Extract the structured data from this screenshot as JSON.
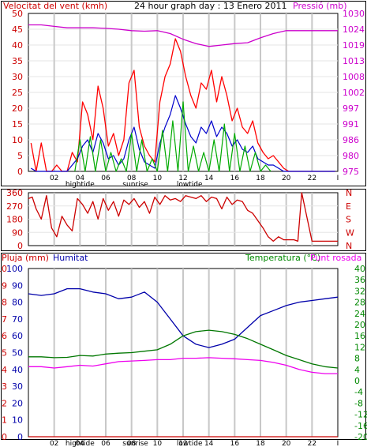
{
  "colors": {
    "wind": "#ff0000",
    "gust": "#dd0000",
    "wind_avg": "#0000cc",
    "wind_green": "#00aa00",
    "pressure": "#cc00cc",
    "direction": "#cc0000",
    "humidity": "#0000aa",
    "temperature": "#007700",
    "dewpoint": "#ee00ee",
    "rain": "#cc0000",
    "grid": "#c8c8c8",
    "frame": "#000000",
    "temp_axis": "#008800"
  },
  "panel1": {
    "left_label": "Velocitat del vent (kmh)",
    "title": "24 hour graph day : 13 Enero 2011",
    "right_label": "Pressió (mb)"
  },
  "panel2": {},
  "panel3": {
    "left_label_1": "Pluja (mm)",
    "left_label_2": "Humitat",
    "right_label_1": "Temperatura (°C)",
    "right_label_2": "Punt rosada"
  },
  "x_ticks": [
    "02",
    "04",
    "06",
    "08",
    "10",
    "12",
    "14",
    "16",
    "18",
    "20",
    "22"
  ],
  "x_end_mark": "I",
  "tide_labels": [
    {
      "text": "hightide",
      "x": 4.0
    },
    {
      "text": "sunrise",
      "x": 8.3
    },
    {
      "text": "lowtide",
      "x": 12.5
    }
  ],
  "chart_data": [
    {
      "type": "line",
      "title": "24 hour graph day : 13 Enero 2011",
      "ylabel": "Velocitat del vent (kmh)",
      "y2label": "Pressió (mb)",
      "ylim": [
        0,
        50
      ],
      "y2lim": [
        975,
        1030
      ],
      "y_ticks": [
        "0",
        "5",
        "10",
        "15",
        "20",
        "25",
        "30",
        "35",
        "40",
        "45",
        "50"
      ],
      "y2_ticks": [
        "975",
        "980",
        "986",
        "991",
        "997",
        "1002",
        "1008",
        "1013",
        "1019",
        "1024",
        "1030"
      ],
      "series": [
        {
          "key": "gust",
          "x": [
            0.2,
            0.6,
            1.0,
            1.4,
            1.8,
            2.2,
            2.6,
            3.0,
            3.4,
            3.8,
            4.2,
            4.6,
            5.0,
            5.4,
            5.8,
            6.2,
            6.6,
            7.0,
            7.4,
            7.8,
            8.2,
            8.6,
            9.0,
            9.4,
            9.8,
            10.2,
            10.6,
            11.0,
            11.4,
            11.8,
            12.2,
            12.6,
            13.0,
            13.4,
            13.8,
            14.2,
            14.6,
            15.0,
            15.4,
            15.8,
            16.2,
            16.6,
            17.0,
            17.4,
            17.8,
            18.2,
            18.6,
            19.0,
            19.4,
            19.8,
            20.2,
            21.0,
            22.0,
            23.0,
            23.8
          ],
          "values": [
            9,
            0,
            9,
            0,
            0,
            2,
            0,
            0,
            6,
            3,
            22,
            18,
            10,
            27,
            20,
            8,
            12,
            5,
            10,
            28,
            32,
            14,
            8,
            5,
            3,
            22,
            30,
            34,
            42,
            38,
            30,
            24,
            20,
            28,
            26,
            32,
            22,
            30,
            24,
            16,
            20,
            14,
            12,
            16,
            9,
            6,
            4,
            5,
            3,
            1,
            0,
            0,
            0,
            0,
            0
          ]
        },
        {
          "key": "avg",
          "x": [
            0.2,
            0.6,
            1.0,
            1.4,
            1.8,
            2.2,
            2.6,
            3.0,
            3.4,
            3.8,
            4.2,
            4.6,
            5.0,
            5.4,
            5.8,
            6.2,
            6.6,
            7.0,
            7.4,
            7.8,
            8.2,
            8.6,
            9.0,
            9.4,
            9.8,
            10.2,
            10.6,
            11.0,
            11.4,
            11.8,
            12.2,
            12.6,
            13.0,
            13.4,
            13.8,
            14.2,
            14.6,
            15.0,
            15.4,
            15.8,
            16.2,
            16.6,
            17.0,
            17.4,
            17.8,
            18.2,
            18.6,
            19.0,
            19.4,
            19.8,
            20.2,
            21.0,
            22.0,
            23.0,
            23.8
          ],
          "values": [
            1,
            0,
            0,
            0,
            0,
            0,
            0,
            0,
            2,
            4,
            8,
            10,
            6,
            12,
            9,
            4,
            5,
            2,
            4,
            10,
            14,
            7,
            3,
            2,
            1,
            9,
            14,
            18,
            24,
            20,
            15,
            11,
            9,
            14,
            12,
            16,
            11,
            14,
            12,
            8,
            10,
            7,
            6,
            8,
            4,
            3,
            2,
            2,
            1,
            0,
            0,
            0,
            0,
            0,
            0
          ]
        },
        {
          "key": "green",
          "x": [
            3.6,
            4.0,
            4.4,
            4.8,
            5.2,
            5.6,
            6.0,
            6.4,
            6.8,
            7.2,
            7.6,
            8.0,
            8.4,
            8.8,
            9.2,
            9.6,
            10.0,
            10.4,
            10.8,
            11.2,
            11.6,
            12.0,
            12.4,
            12.8,
            13.2,
            13.6,
            14.0,
            14.4,
            14.8,
            15.2,
            15.6,
            16.0,
            16.4,
            16.8,
            17.2,
            17.6,
            18.0,
            18.4,
            18.8
          ],
          "values": [
            0,
            10,
            0,
            11,
            0,
            10,
            0,
            6,
            0,
            4,
            0,
            12,
            0,
            10,
            0,
            4,
            0,
            13,
            0,
            16,
            0,
            22,
            0,
            8,
            0,
            6,
            0,
            10,
            0,
            15,
            0,
            12,
            0,
            8,
            0,
            6,
            0,
            2,
            0
          ]
        },
        {
          "key": "pressure",
          "axis": "y2",
          "x": [
            0,
            1,
            2,
            3,
            4,
            5,
            6,
            7,
            8,
            9,
            10,
            11,
            12,
            13,
            14,
            15,
            16,
            17,
            18,
            19,
            20,
            21,
            22,
            23,
            24
          ],
          "values": [
            1026,
            1026,
            1025.5,
            1025,
            1025,
            1025,
            1024.8,
            1024.5,
            1024,
            1023.8,
            1024,
            1023,
            1021,
            1019.5,
            1018.5,
            1019,
            1019.5,
            1019.8,
            1021.5,
            1023,
            1024,
            1024,
            1024,
            1024,
            1024
          ]
        }
      ]
    },
    {
      "type": "line",
      "ylim": [
        0,
        360
      ],
      "y_ticks": [
        "0",
        "90",
        "180",
        "270",
        "360"
      ],
      "y2_ticks": [
        "N",
        "W",
        "S",
        "E",
        "N"
      ],
      "series": [
        {
          "key": "direction",
          "x": [
            0.0,
            0.3,
            0.6,
            1.0,
            1.4,
            1.8,
            2.2,
            2.6,
            3.0,
            3.4,
            3.8,
            4.2,
            4.6,
            5.0,
            5.4,
            5.8,
            6.2,
            6.6,
            7.0,
            7.4,
            7.8,
            8.2,
            8.6,
            9.0,
            9.4,
            9.8,
            10.2,
            10.6,
            11.0,
            11.4,
            11.8,
            12.2,
            12.6,
            13.0,
            13.4,
            13.8,
            14.2,
            14.6,
            15.0,
            15.4,
            15.8,
            16.2,
            16.6,
            17.0,
            17.4,
            17.8,
            18.2,
            18.6,
            19.0,
            19.4,
            19.8,
            20.2,
            20.6,
            20.9,
            21.2,
            22.0,
            23.0,
            24.0
          ],
          "values": [
            320,
            330,
            250,
            180,
            340,
            120,
            60,
            200,
            140,
            100,
            320,
            280,
            220,
            300,
            180,
            320,
            240,
            300,
            200,
            310,
            280,
            320,
            260,
            300,
            220,
            330,
            280,
            340,
            310,
            320,
            300,
            340,
            330,
            320,
            340,
            300,
            330,
            320,
            250,
            330,
            280,
            310,
            300,
            240,
            220,
            170,
            120,
            60,
            30,
            60,
            40,
            40,
            40,
            30,
            360,
            30,
            30,
            30
          ]
        }
      ]
    },
    {
      "type": "line",
      "ylabel": "Pluja (mm) / Humitat",
      "y2label": "Temperatura (°C) / Punt rosada",
      "y_ticks_rain": [
        "0",
        "1",
        "2",
        "3",
        "4",
        "5",
        "6",
        "7",
        "8",
        "9",
        "10"
      ],
      "y_ticks_hum": [
        "0",
        "10",
        "20",
        "30",
        "40",
        "50",
        "60",
        "70",
        "80",
        "90",
        "100"
      ],
      "ylim": [
        0,
        100
      ],
      "y2lim": [
        -20,
        40
      ],
      "y2_ticks": [
        "-20",
        "-16",
        "-12",
        "-8",
        "-4",
        "0",
        "4",
        "8",
        "12",
        "16",
        "20",
        "24",
        "28",
        "32",
        "36",
        "40"
      ],
      "series": [
        {
          "key": "humidity",
          "x": [
            0,
            1,
            2,
            3,
            4,
            5,
            6,
            7,
            8,
            9,
            10,
            11,
            12,
            13,
            14,
            15,
            16,
            17,
            18,
            19,
            20,
            21,
            22,
            23,
            24
          ],
          "values": [
            85,
            84,
            85,
            88,
            88,
            86,
            85,
            82,
            83,
            86,
            80,
            70,
            60,
            55,
            53,
            55,
            58,
            65,
            72,
            75,
            78,
            80,
            81,
            82,
            83
          ]
        },
        {
          "key": "temperature",
          "axis": "y2",
          "x": [
            0,
            1,
            2,
            3,
            4,
            5,
            6,
            7,
            8,
            9,
            10,
            11,
            12,
            13,
            14,
            15,
            16,
            17,
            18,
            19,
            20,
            21,
            22,
            23,
            24
          ],
          "values": [
            8.5,
            8.5,
            8.2,
            8.3,
            9,
            8.8,
            9.5,
            9.8,
            10,
            10.5,
            11,
            13,
            16,
            17.5,
            18,
            17.5,
            16.5,
            15,
            13,
            11,
            9,
            7.5,
            6,
            5,
            4.5
          ]
        },
        {
          "key": "dewpoint",
          "axis": "y2",
          "x": [
            0,
            1,
            2,
            3,
            4,
            5,
            6,
            7,
            8,
            9,
            10,
            11,
            12,
            13,
            14,
            15,
            16,
            17,
            18,
            19,
            20,
            21,
            22,
            23,
            24
          ],
          "values": [
            5,
            5,
            4.5,
            5,
            5.5,
            5.2,
            6,
            6.8,
            7,
            7.2,
            7.5,
            7.5,
            8,
            8,
            8.2,
            8,
            7.8,
            7.5,
            7.2,
            6.5,
            5.5,
            4,
            3,
            2.5,
            2.5
          ]
        },
        {
          "key": "rain",
          "x": [
            0,
            24
          ],
          "values": [
            0,
            0
          ]
        }
      ]
    }
  ]
}
